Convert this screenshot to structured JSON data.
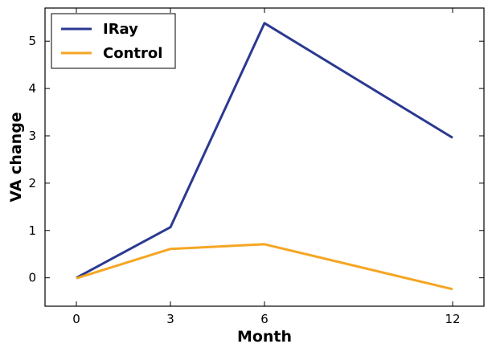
{
  "chart_data": {
    "type": "line",
    "title": "",
    "xlabel": "Month",
    "ylabel": "VA change",
    "x": [
      0,
      3,
      6,
      12
    ],
    "xlim": [
      -1,
      13
    ],
    "ylim": [
      -0.6,
      5.7
    ],
    "xticks": [
      0,
      3,
      6,
      12
    ],
    "yticks": [
      0,
      1,
      2,
      3,
      4,
      5
    ],
    "grid": false,
    "legend_position": "top-left",
    "series": [
      {
        "name": "IRay",
        "color": "#2b3990",
        "values": [
          0,
          1.07,
          5.38,
          2.96
        ]
      },
      {
        "name": "Control",
        "color": "#f5a623",
        "values": [
          -0.01,
          0.61,
          0.71,
          -0.24
        ]
      }
    ]
  }
}
